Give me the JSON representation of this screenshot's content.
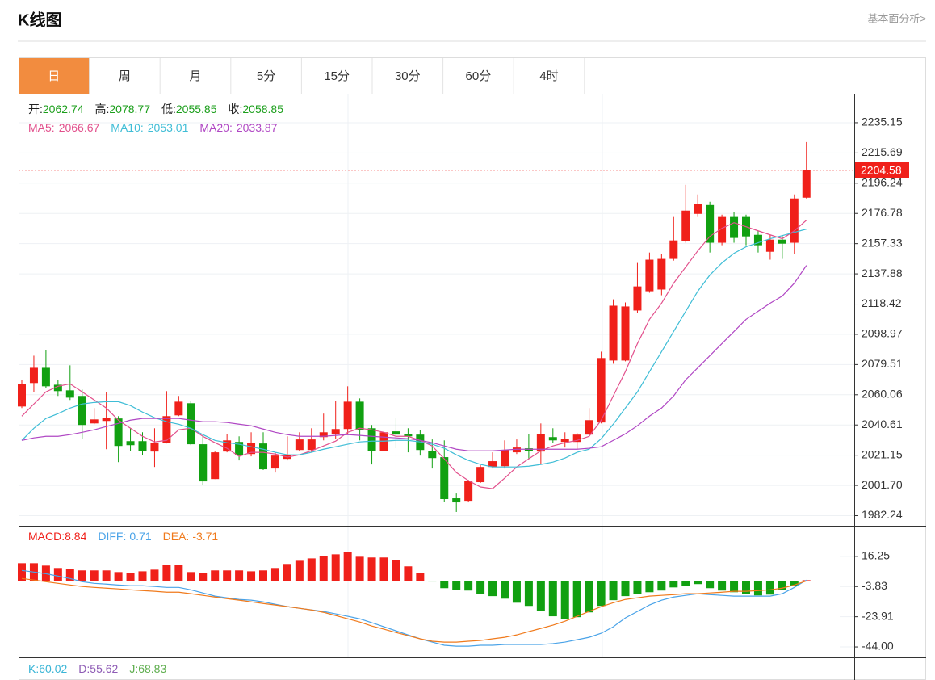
{
  "header": {
    "title": "K线图",
    "link": "基本面分析>"
  },
  "tabs": [
    "日",
    "周",
    "月",
    "5分",
    "15分",
    "30分",
    "60分",
    "4时"
  ],
  "active_tab": 0,
  "active_tab_color": "#f28c3f",
  "chart_data": [
    {
      "type": "candlestick",
      "info": [
        {
          "label": "开:",
          "value": 2062.74
        },
        {
          "label": "高:",
          "value": 2078.77
        },
        {
          "label": "低:",
          "value": 2055.85
        },
        {
          "label": "收:",
          "value": 2058.85
        }
      ],
      "info_color": "#1a9e1a",
      "up_color": "#f0201a",
      "down_color": "#11a011",
      "open": [
        2052.5,
        2067.6,
        2077.4,
        2066.5,
        2062.9,
        2059.3,
        2041.6,
        2043.2,
        2044.8,
        2030.2,
        2030.2,
        2023.5,
        2029.2,
        2046.8,
        2054.6,
        2028.2,
        2005.8,
        2023.5,
        2029.7,
        2021.9,
        2028.7,
        2012.6,
        2018.8,
        2024.5,
        2024.5,
        2032.8,
        2034.9,
        2038.0,
        2055.6,
        2038.5,
        2024.0,
        2036.5,
        2034.9,
        2034.4,
        2024.0,
        2019.9,
        1993.4,
        1991.8,
        2003.8,
        2013.6,
        2014.1,
        2023.0,
        2025.6,
        2023.5,
        2032.8,
        2029.7,
        2029.7,
        2034.4,
        2042.2,
        2082.1,
        2082.1,
        2114.3,
        2126.7,
        2127.8,
        2147.5,
        2158.9,
        2176.5,
        2182.2,
        2157.9,
        2174.5,
        2174.5,
        2163.0,
        2152.1,
        2159.9,
        2157.9,
        2186.9
      ],
      "high": [
        2069.7,
        2085.2,
        2088.9,
        2069.7,
        2079.0,
        2063.4,
        2051.5,
        2061.9,
        2046.3,
        2038.5,
        2035.9,
        2038.5,
        2062.4,
        2059.3,
        2056.2,
        2033.3,
        2023.5,
        2034.9,
        2033.3,
        2035.9,
        2035.9,
        2023.0,
        2033.3,
        2035.9,
        2038.5,
        2047.9,
        2056.2,
        2065.5,
        2057.7,
        2040.6,
        2038.5,
        2045.3,
        2038.5,
        2037.5,
        2031.3,
        2030.7,
        1996.5,
        2005.3,
        2014.7,
        2023.0,
        2030.7,
        2031.3,
        2034.9,
        2041.6,
        2038.5,
        2035.9,
        2035.4,
        2051.5,
        2087.8,
        2121.5,
        2119.5,
        2144.9,
        2151.6,
        2150.6,
        2174.5,
        2195.2,
        2189.0,
        2184.3,
        2176.0,
        2177.6,
        2176.0,
        2165.6,
        2163.0,
        2162.5,
        2189.0,
        2222.7
      ],
      "low": [
        2051.5,
        2061.9,
        2064.5,
        2059.3,
        2056.7,
        2031.8,
        2041.1,
        2025.0,
        2016.7,
        2024.0,
        2021.4,
        2013.6,
        2028.7,
        2046.3,
        2027.6,
        2001.7,
        2005.8,
        2023.0,
        2017.8,
        2020.4,
        2011.6,
        2010.0,
        2017.8,
        2024.0,
        2023.0,
        2030.7,
        2031.8,
        2034.9,
        2030.7,
        2015.2,
        2023.5,
        2025.6,
        2023.0,
        2020.9,
        2012.6,
        1991.3,
        1984.6,
        1990.8,
        2003.3,
        2012.6,
        2012.6,
        2021.9,
        2018.8,
        2015.7,
        2029.2,
        2026.1,
        2025.0,
        2033.3,
        2041.6,
        2080.0,
        2081.6,
        2112.7,
        2125.7,
        2124.1,
        2146.4,
        2157.9,
        2174.5,
        2151.6,
        2156.3,
        2157.9,
        2156.3,
        2151.6,
        2147.0,
        2147.5,
        2150.6,
        2186.4
      ],
      "close": [
        2067.1,
        2077.4,
        2065.5,
        2062.4,
        2058.2,
        2040.6,
        2044.2,
        2045.3,
        2027.1,
        2027.6,
        2024.0,
        2029.2,
        2046.3,
        2055.6,
        2028.2,
        2004.3,
        2023.0,
        2030.7,
        2021.4,
        2029.2,
        2012.1,
        2020.9,
        2021.4,
        2031.3,
        2031.3,
        2035.9,
        2038.0,
        2055.6,
        2037.5,
        2024.0,
        2035.9,
        2034.4,
        2033.3,
        2024.5,
        2019.3,
        1992.9,
        1990.8,
        2004.8,
        2013.6,
        2017.3,
        2024.5,
        2026.1,
        2024.0,
        2034.9,
        2030.7,
        2031.8,
        2034.4,
        2043.7,
        2083.7,
        2117.4,
        2116.9,
        2129.8,
        2147.0,
        2147.5,
        2159.4,
        2178.6,
        2182.8,
        2157.9,
        2174.5,
        2161.0,
        2162.0,
        2156.3,
        2159.9,
        2157.3,
        2186.4,
        2204.58
      ],
      "series": [
        {
          "name": "MA5:",
          "legend_value": 2066.67,
          "color": "#e2508c",
          "values": [
            2046.3,
            2054.1,
            2061.9,
            2065.5,
            2067.1,
            2061.9,
            2056.7,
            2051.5,
            2043.7,
            2038.5,
            2033.3,
            2029.7,
            2030.7,
            2037.5,
            2038.5,
            2033.3,
            2029.2,
            2025.6,
            2020.4,
            2023.0,
            2023.0,
            2021.9,
            2019.9,
            2021.4,
            2024.0,
            2027.1,
            2030.2,
            2035.9,
            2038.5,
            2037.5,
            2035.9,
            2033.3,
            2033.3,
            2030.7,
            2027.1,
            2018.8,
            2010.0,
            2004.8,
            2000.7,
            1999.6,
            2006.4,
            2013.6,
            2018.8,
            2024.0,
            2027.1,
            2029.2,
            2030.7,
            2033.3,
            2043.7,
            2059.3,
            2074.9,
            2093.0,
            2108.6,
            2119.0,
            2131.9,
            2142.3,
            2152.7,
            2162.0,
            2167.2,
            2170.8,
            2168.2,
            2165.6,
            2163.0,
            2160.5,
            2165.6,
            2172.4
          ]
        },
        {
          "name": "MA10:",
          "legend_value": 2053.01,
          "color": "#3fbdd6",
          "values": [
            2030.7,
            2038.5,
            2044.8,
            2047.9,
            2051.5,
            2054.1,
            2055.1,
            2055.6,
            2055.6,
            2053.1,
            2048.9,
            2045.3,
            2042.7,
            2041.1,
            2038.5,
            2034.4,
            2030.7,
            2029.2,
            2028.2,
            2026.6,
            2025.0,
            2023.0,
            2021.4,
            2021.4,
            2023.0,
            2025.0,
            2026.6,
            2028.2,
            2029.7,
            2030.2,
            2030.2,
            2030.7,
            2030.7,
            2029.7,
            2028.2,
            2025.6,
            2021.4,
            2017.8,
            2015.2,
            2013.6,
            2013.6,
            2013.6,
            2014.1,
            2015.2,
            2016.7,
            2019.3,
            2023.0,
            2025.0,
            2031.8,
            2041.1,
            2051.5,
            2061.9,
            2074.9,
            2087.8,
            2100.8,
            2113.8,
            2126.7,
            2137.1,
            2144.9,
            2151.1,
            2155.3,
            2157.9,
            2160.5,
            2162.5,
            2164.6,
            2166.7
          ]
        },
        {
          "name": "MA20:",
          "legend_value": 2033.87,
          "color": "#b047c4",
          "values": [
            2030.7,
            2032.3,
            2033.3,
            2033.3,
            2034.4,
            2035.9,
            2037.5,
            2039.6,
            2041.6,
            2043.7,
            2044.8,
            2044.8,
            2044.8,
            2044.8,
            2043.7,
            2042.7,
            2042.7,
            2042.2,
            2041.1,
            2040.1,
            2038.0,
            2035.9,
            2034.4,
            2033.3,
            2033.3,
            2033.3,
            2033.9,
            2034.4,
            2033.9,
            2033.3,
            2032.8,
            2032.3,
            2031.8,
            2030.7,
            2029.2,
            2027.1,
            2025.0,
            2024.0,
            2024.0,
            2024.0,
            2024.5,
            2025.0,
            2025.0,
            2025.0,
            2025.0,
            2025.0,
            2025.0,
            2025.6,
            2026.6,
            2030.7,
            2034.9,
            2040.1,
            2046.3,
            2051.5,
            2059.3,
            2069.7,
            2077.4,
            2085.2,
            2093.0,
            2100.8,
            2108.6,
            2113.8,
            2119.0,
            2123.6,
            2131.9,
            2143.3
          ]
        }
      ],
      "current_price": 2204.58,
      "current_color": "#f0201a",
      "ylim": [
        1975.75,
        2253.31
      ],
      "yticks": [
        2235.15,
        2215.69,
        2196.24,
        2176.78,
        2157.33,
        2137.88,
        2118.42,
        2098.97,
        2079.51,
        2060.06,
        2040.61,
        2021.15,
        {
          "value": 2001.7,
          "label": "2001.70"
        },
        1982.24
      ],
      "grid": true
    },
    {
      "type": "macd",
      "name": "MACD:",
      "legend_value": 8.84,
      "color": "#f0201a",
      "up_color": "#f0201a",
      "down_color": "#11a011",
      "values": [
        11.7,
        11.7,
        10.1,
        8.5,
        7.9,
        6.9,
        6.9,
        6.9,
        5.8,
        5.3,
        6.3,
        7.4,
        10.6,
        10.6,
        5.8,
        5.3,
        6.9,
        6.9,
        6.9,
        6.3,
        6.9,
        8.5,
        11.2,
        13.3,
        14.9,
        16.5,
        17.6,
        19.2,
        16.0,
        15.5,
        15.5,
        13.8,
        9.6,
        5.3,
        -0.5,
        -4.9,
        -6.0,
        -6.5,
        -8.6,
        -10.2,
        -11.9,
        -14.6,
        -16.7,
        -19.9,
        -23.6,
        -25.3,
        -24.2,
        -21.0,
        -16.7,
        -12.9,
        -10.2,
        -8.6,
        -7.6,
        -6.5,
        -4.4,
        -3.3,
        -2.2,
        -4.9,
        -6.5,
        -7.6,
        -8.6,
        -9.7,
        -9.2,
        -6.0,
        -3.3,
        0.4
      ],
      "series": [
        {
          "name": "DIFF:",
          "legend_value": 0.71,
          "color": "#4aa3e8",
          "values": [
            6.9,
            5.8,
            4.7,
            3.1,
            1.5,
            -0.6,
            -1.7,
            -2.2,
            -2.8,
            -3.3,
            -3.3,
            -3.8,
            -4.4,
            -4.4,
            -6.0,
            -8.1,
            -10.2,
            -11.3,
            -12.4,
            -12.9,
            -14.0,
            -15.6,
            -17.2,
            -18.3,
            -19.4,
            -20.4,
            -22.0,
            -23.6,
            -25.3,
            -27.9,
            -30.6,
            -33.3,
            -36.0,
            -38.6,
            -40.8,
            -42.9,
            -43.5,
            -43.5,
            -42.9,
            -42.9,
            -42.4,
            -42.4,
            -42.4,
            -42.4,
            -41.8,
            -40.8,
            -39.2,
            -37.6,
            -34.9,
            -30.6,
            -24.7,
            -20.4,
            -16.1,
            -12.9,
            -10.8,
            -9.7,
            -8.6,
            -9.2,
            -9.7,
            -10.2,
            -10.2,
            -10.2,
            -10.2,
            -8.6,
            -4.4,
            0.5
          ]
        },
        {
          "name": "DEA:",
          "legend_value": -3.71,
          "color": "#f07a1c",
          "values": [
            1.5,
            0.5,
            -0.6,
            -1.7,
            -2.8,
            -3.8,
            -4.4,
            -4.9,
            -5.4,
            -6.0,
            -6.5,
            -7.0,
            -7.6,
            -7.6,
            -8.6,
            -9.7,
            -10.8,
            -11.9,
            -12.9,
            -14.0,
            -15.1,
            -16.1,
            -17.2,
            -18.3,
            -19.4,
            -21.0,
            -23.1,
            -25.3,
            -27.4,
            -30.1,
            -32.2,
            -34.4,
            -36.5,
            -38.6,
            -40.2,
            -40.8,
            -40.8,
            -40.2,
            -39.7,
            -38.6,
            -37.6,
            -36.0,
            -33.8,
            -31.7,
            -29.5,
            -26.9,
            -23.6,
            -20.4,
            -17.2,
            -14.6,
            -12.4,
            -11.3,
            -10.2,
            -9.7,
            -9.2,
            -8.6,
            -8.6,
            -8.1,
            -7.6,
            -7.0,
            -7.0,
            -6.5,
            -6.0,
            -4.9,
            -2.8,
            -0.1
          ]
        }
      ],
      "ylim": [
        -50.96,
        36.06
      ],
      "yticks": [
        16.25,
        -3.83,
        -23.91,
        {
          "value": -44,
          "label": "-44.00"
        }
      ],
      "grid": true
    },
    {
      "type": "kdj",
      "info": [
        {
          "label": "K:",
          "value": 60.02,
          "color": "#3ab5d6"
        },
        {
          "label": "D:",
          "value": 55.62,
          "color": "#8e5bb5"
        },
        {
          "label": "J:",
          "value": 68.83,
          "color": "#5fae4f"
        }
      ]
    }
  ]
}
